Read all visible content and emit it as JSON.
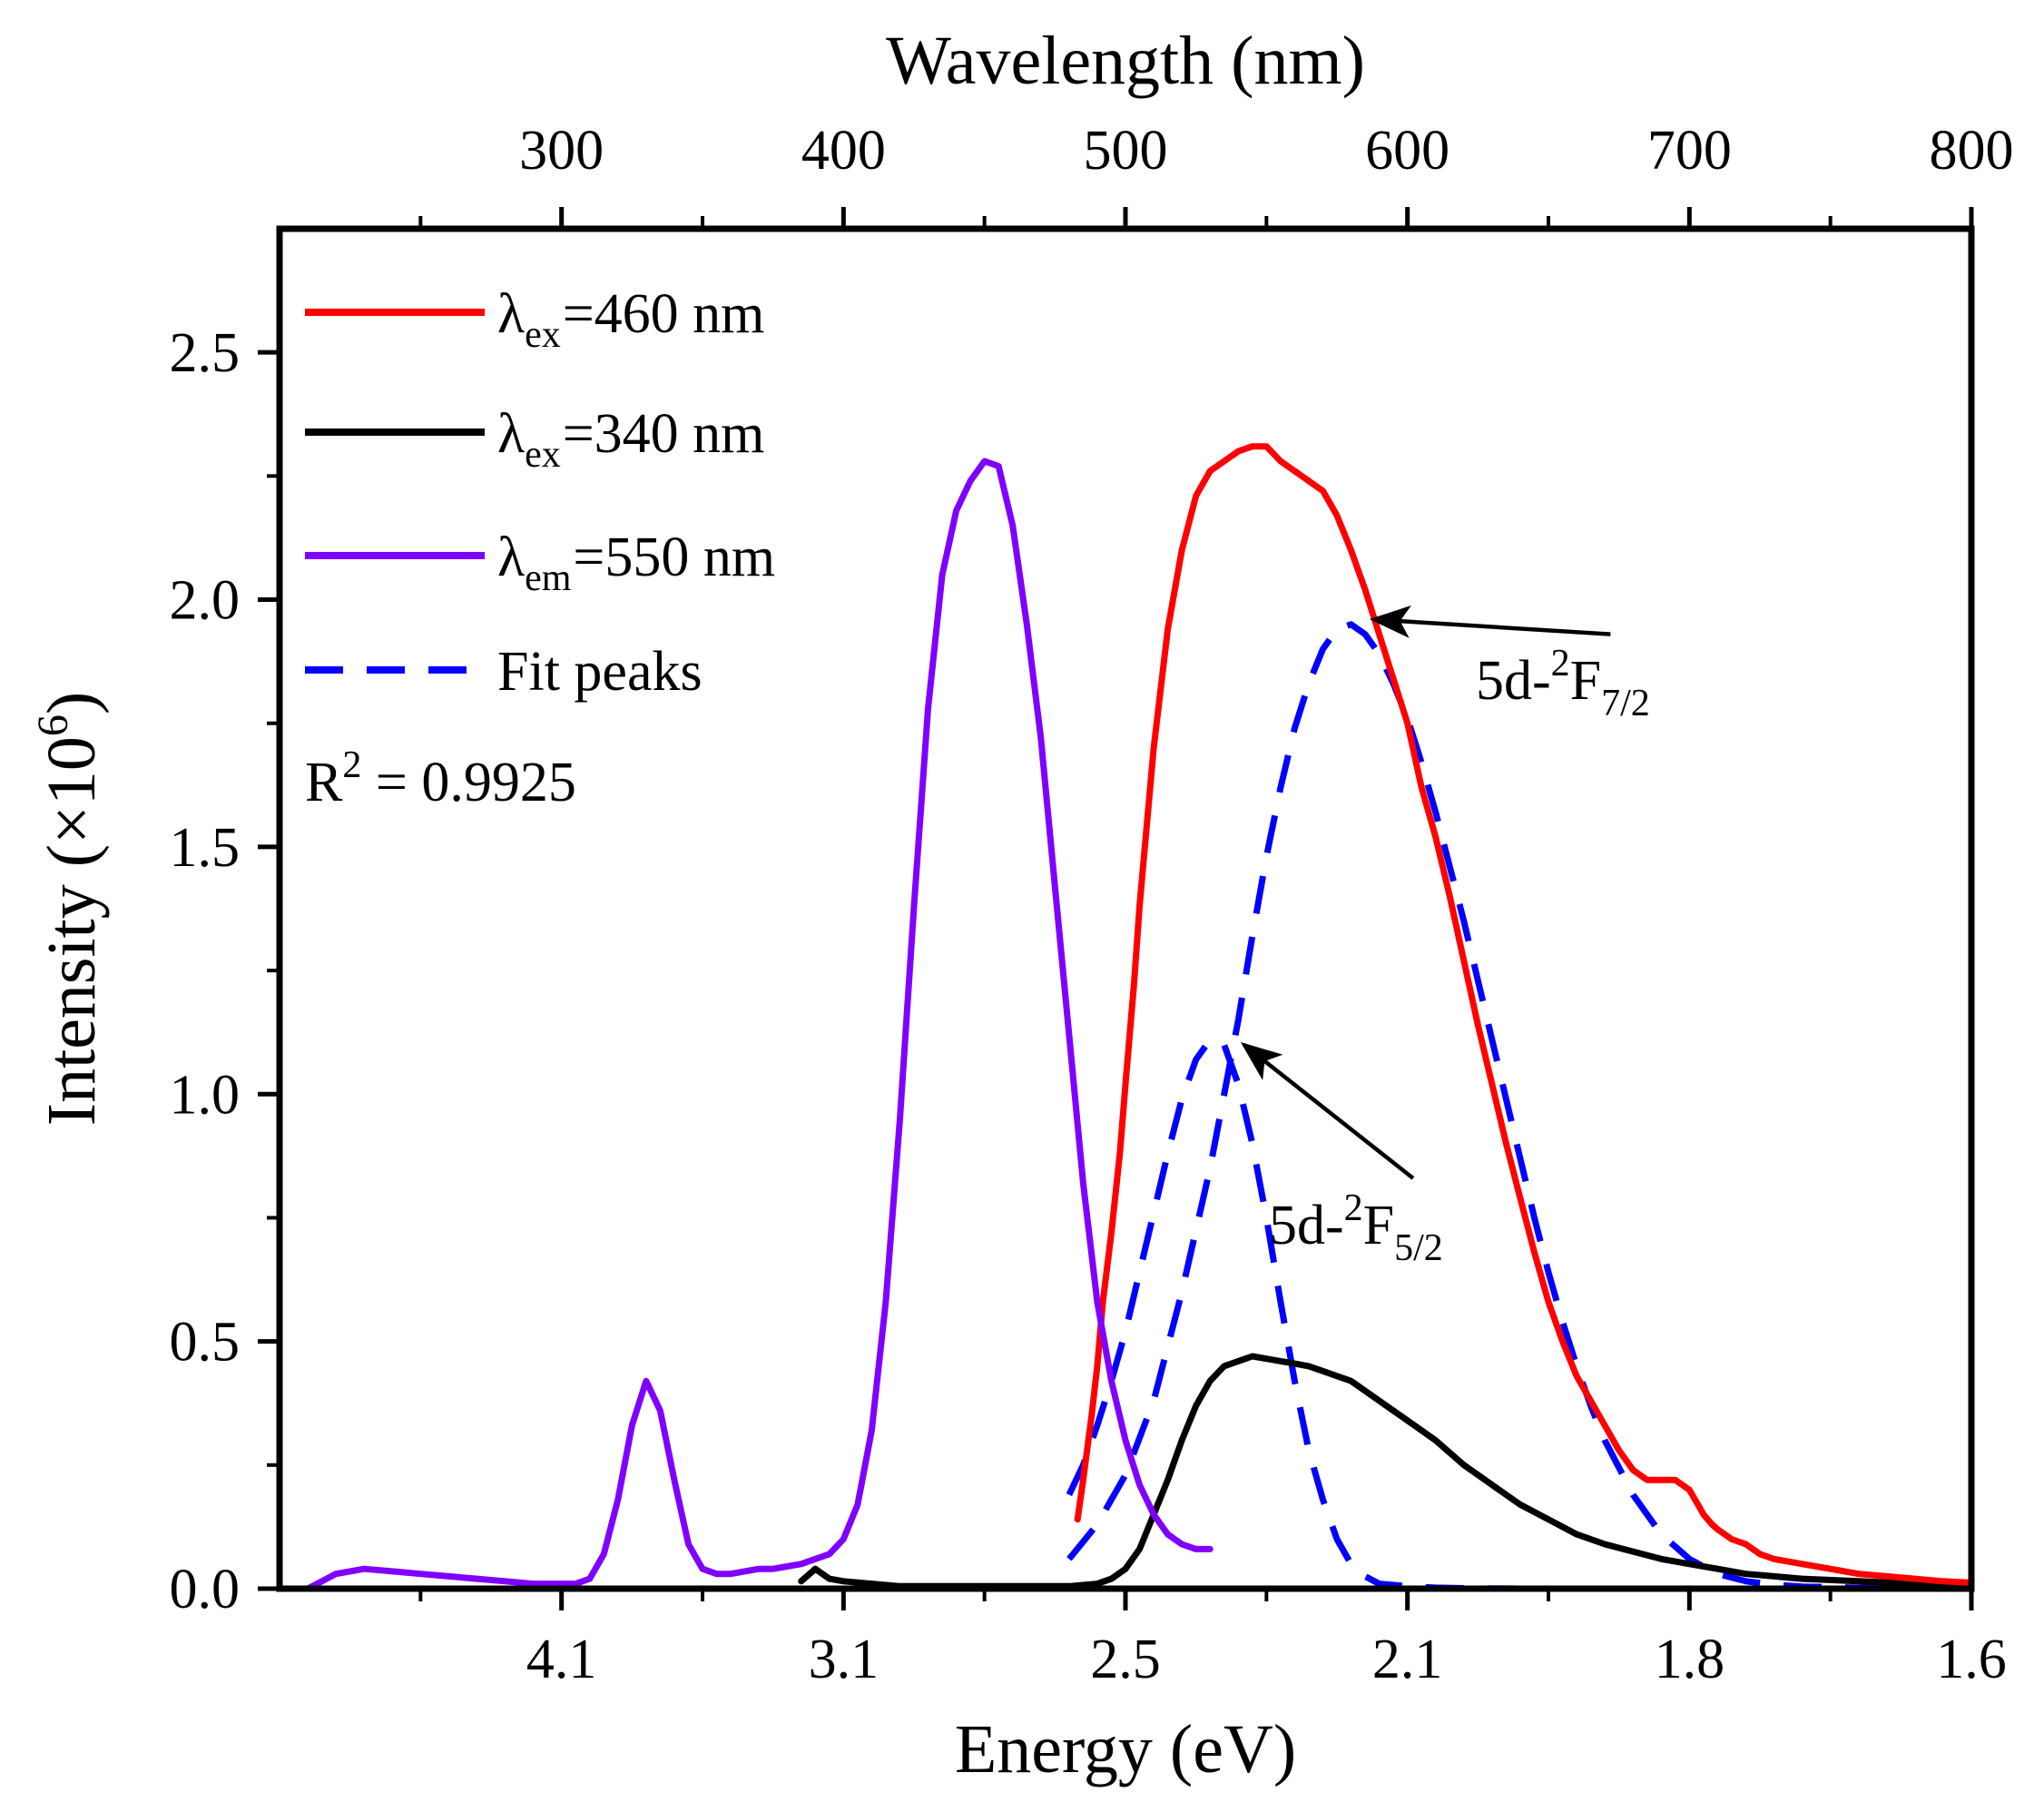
{
  "chart_data": {
    "type": "line",
    "title": "",
    "xlabel": "Energy (eV)",
    "x2label": "Wavelength (nm)",
    "ylabel": "Intensity (×10⁶)",
    "ylabel_parts": {
      "main": "Intensity (×10",
      "sup": "6",
      "close": ")"
    },
    "xlim_nm": [
      200,
      800
    ],
    "ylim": [
      0,
      2.75
    ],
    "x_bottom_ticks": [
      {
        "label": "4.1",
        "nm": 300
      },
      {
        "label": "3.1",
        "nm": 400
      },
      {
        "label": "2.5",
        "nm": 500
      },
      {
        "label": "2.1",
        "nm": 600
      },
      {
        "label": "1.8",
        "nm": 700
      },
      {
        "label": "1.6",
        "nm": 800
      }
    ],
    "x_top_ticks": [
      "300",
      "400",
      "500",
      "600",
      "700",
      "800"
    ],
    "y_ticks": [
      "0.0",
      "0.5",
      "1.0",
      "1.5",
      "2.0",
      "2.5"
    ],
    "legend": {
      "position": "top-left",
      "entries": [
        {
          "symbol": "λ",
          "sub": "ex",
          "text": "=460 nm",
          "color": "#ff0000",
          "dash": false
        },
        {
          "symbol": "λ",
          "sub": "ex",
          "text": "=340 nm",
          "color": "#000000",
          "dash": false
        },
        {
          "symbol": "λ",
          "sub": "em",
          "text": "=550 nm",
          "color": "#7f00ff",
          "dash": false
        },
        {
          "symbol": "",
          "sub": "",
          "text": "Fit peaks",
          "color": "#0000ff",
          "dash": true
        }
      ]
    },
    "r2": {
      "prefix": "R",
      "sup": "2",
      "text": " = 0.9925"
    },
    "annotations": [
      {
        "main": "5d-",
        "sup": "2",
        "letter": "F",
        "sub": "7/2",
        "from_nm": 672,
        "from_y": 1.93,
        "to_nm": 588,
        "to_y": 1.96
      },
      {
        "main": "5d-",
        "sup": "2",
        "letter": "F",
        "sub": "5/2",
        "from_nm": 602,
        "from_y": 0.83,
        "to_nm": 542,
        "to_y": 1.1
      }
    ],
    "series": [
      {
        "name": "λex=460 nm",
        "color": "#ff0000",
        "dash": false,
        "x": [
          483,
          485,
          488,
          490,
          492,
          495,
          498,
          500,
          503,
          505,
          510,
          515,
          520,
          525,
          530,
          535,
          540,
          545,
          550,
          555,
          560,
          565,
          570,
          575,
          580,
          585,
          590,
          595,
          600,
          605,
          610,
          615,
          620,
          625,
          630,
          635,
          640,
          645,
          650,
          655,
          660,
          665,
          670,
          675,
          680,
          685,
          690,
          695,
          700,
          703,
          705,
          708,
          710,
          715,
          720,
          725,
          730,
          740,
          750,
          760,
          770,
          780,
          790,
          800
        ],
        "values": [
          0.14,
          0.22,
          0.35,
          0.45,
          0.58,
          0.72,
          0.88,
          1.02,
          1.22,
          1.38,
          1.7,
          1.94,
          2.1,
          2.21,
          2.26,
          2.28,
          2.3,
          2.31,
          2.31,
          2.28,
          2.26,
          2.24,
          2.22,
          2.17,
          2.1,
          2.02,
          1.93,
          1.84,
          1.75,
          1.62,
          1.52,
          1.4,
          1.27,
          1.14,
          1.02,
          0.9,
          0.79,
          0.68,
          0.58,
          0.5,
          0.43,
          0.38,
          0.33,
          0.28,
          0.24,
          0.22,
          0.22,
          0.22,
          0.2,
          0.17,
          0.15,
          0.13,
          0.12,
          0.1,
          0.09,
          0.07,
          0.06,
          0.05,
          0.04,
          0.03,
          0.025,
          0.02,
          0.015,
          0.012
        ]
      },
      {
        "name": "λex=340 nm",
        "color": "#000000",
        "dash": false,
        "x": [
          385,
          390,
          395,
          400,
          410,
          420,
          440,
          460,
          480,
          490,
          495,
          500,
          505,
          510,
          515,
          520,
          525,
          530,
          535,
          540,
          545,
          550,
          555,
          560,
          565,
          570,
          575,
          580,
          585,
          590,
          595,
          600,
          610,
          620,
          630,
          640,
          650,
          660,
          670,
          680,
          690,
          700,
          710,
          720,
          730,
          740,
          760,
          780,
          800
        ],
        "values": [
          0.015,
          0.04,
          0.02,
          0.015,
          0.01,
          0.005,
          0.005,
          0.005,
          0.005,
          0.01,
          0.02,
          0.04,
          0.08,
          0.15,
          0.22,
          0.3,
          0.37,
          0.42,
          0.45,
          0.46,
          0.47,
          0.465,
          0.46,
          0.455,
          0.45,
          0.44,
          0.43,
          0.42,
          0.4,
          0.38,
          0.36,
          0.34,
          0.3,
          0.25,
          0.21,
          0.17,
          0.14,
          0.11,
          0.09,
          0.075,
          0.06,
          0.05,
          0.04,
          0.03,
          0.025,
          0.02,
          0.015,
          0.01,
          0.008
        ]
      },
      {
        "name": "λem=550 nm",
        "color": "#7f00ff",
        "dash": false,
        "x": [
          210,
          220,
          230,
          240,
          250,
          260,
          270,
          280,
          290,
          300,
          305,
          310,
          315,
          320,
          325,
          330,
          335,
          340,
          345,
          350,
          355,
          360,
          365,
          370,
          375,
          380,
          385,
          390,
          395,
          400,
          405,
          410,
          415,
          420,
          425,
          430,
          435,
          440,
          445,
          450,
          455,
          460,
          465,
          470,
          475,
          480,
          485,
          490,
          495,
          500,
          505,
          510,
          515,
          520,
          525,
          530
        ],
        "values": [
          0.0,
          0.03,
          0.04,
          0.035,
          0.03,
          0.025,
          0.02,
          0.015,
          0.01,
          0.01,
          0.01,
          0.02,
          0.07,
          0.18,
          0.33,
          0.42,
          0.36,
          0.22,
          0.09,
          0.04,
          0.03,
          0.03,
          0.035,
          0.04,
          0.04,
          0.045,
          0.05,
          0.06,
          0.07,
          0.1,
          0.17,
          0.32,
          0.58,
          0.95,
          1.38,
          1.78,
          2.05,
          2.18,
          2.24,
          2.28,
          2.27,
          2.15,
          1.95,
          1.72,
          1.42,
          1.12,
          0.82,
          0.58,
          0.42,
          0.3,
          0.21,
          0.15,
          0.11,
          0.09,
          0.08,
          0.08
        ]
      },
      {
        "name": "Fit peak 5d-2F5/2",
        "color": "#0000ff",
        "dash": true,
        "x": [
          480,
          485,
          490,
          495,
          500,
          505,
          510,
          515,
          520,
          525,
          530,
          535,
          540,
          545,
          550,
          555,
          560,
          565,
          570,
          575,
          580,
          585,
          590,
          600,
          610,
          620,
          640,
          660
        ],
        "values": [
          0.19,
          0.25,
          0.33,
          0.42,
          0.52,
          0.64,
          0.76,
          0.88,
          0.99,
          1.07,
          1.11,
          1.1,
          1.02,
          0.9,
          0.75,
          0.58,
          0.42,
          0.28,
          0.18,
          0.1,
          0.05,
          0.025,
          0.01,
          0.005,
          0.002,
          0.001,
          0.0,
          0.0
        ]
      },
      {
        "name": "Fit peak 5d-2F7/2",
        "color": "#0000ff",
        "dash": true,
        "x": [
          480,
          490,
          500,
          510,
          520,
          530,
          540,
          545,
          550,
          555,
          560,
          565,
          570,
          575,
          580,
          585,
          590,
          595,
          600,
          605,
          610,
          615,
          620,
          625,
          630,
          635,
          640,
          645,
          650,
          655,
          660,
          665,
          670,
          680,
          690,
          700,
          710,
          720,
          730,
          740,
          760,
          780,
          800
        ],
        "values": [
          0.06,
          0.13,
          0.23,
          0.38,
          0.6,
          0.85,
          1.15,
          1.32,
          1.48,
          1.62,
          1.74,
          1.83,
          1.9,
          1.94,
          1.95,
          1.93,
          1.89,
          1.83,
          1.76,
          1.67,
          1.57,
          1.46,
          1.35,
          1.23,
          1.11,
          0.99,
          0.87,
          0.75,
          0.64,
          0.54,
          0.45,
          0.37,
          0.3,
          0.19,
          0.11,
          0.06,
          0.03,
          0.015,
          0.008,
          0.004,
          0.002,
          0.001,
          0.0
        ]
      }
    ]
  }
}
